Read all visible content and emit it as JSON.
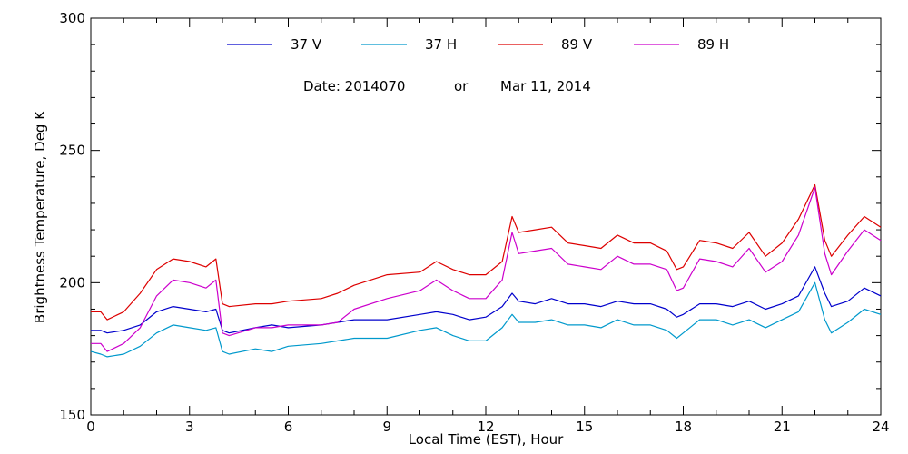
{
  "chart_data": {
    "type": "line",
    "title": "",
    "date_label": "Date: 2014070",
    "date_or": "or",
    "date_text": "Mar 11, 2014",
    "xlabel": "Local Time (EST), Hour",
    "ylabel": "Brightness Temperature, Deg K",
    "xlim": [
      0,
      24
    ],
    "ylim": [
      150,
      300
    ],
    "xticks": [
      0,
      3,
      6,
      9,
      12,
      15,
      18,
      21,
      24
    ],
    "yticks": [
      150,
      200,
      250,
      300
    ],
    "grid": false,
    "legend_position": "top",
    "x": [
      0,
      0.3,
      0.5,
      1,
      1.5,
      2,
      2.5,
      3,
      3.5,
      3.8,
      4,
      4.2,
      5,
      5.5,
      6,
      7,
      7.5,
      8,
      9,
      10,
      10.5,
      11,
      11.5,
      12,
      12.5,
      12.8,
      13,
      13.5,
      14,
      14.5,
      15,
      15.5,
      16,
      16.5,
      17,
      17.5,
      17.8,
      18,
      18.5,
      19,
      19.5,
      20,
      20.5,
      21,
      21.5,
      22,
      22.3,
      22.5,
      23,
      23.5,
      24
    ],
    "series": [
      {
        "name": "37 V",
        "color": "#0000cc",
        "values": [
          182,
          182,
          181,
          182,
          184,
          189,
          191,
          190,
          189,
          190,
          182,
          181,
          183,
          184,
          183,
          184,
          185,
          186,
          186,
          188,
          189,
          188,
          186,
          187,
          191,
          196,
          193,
          192,
          194,
          192,
          192,
          191,
          193,
          192,
          192,
          190,
          187,
          188,
          192,
          192,
          191,
          193,
          190,
          192,
          195,
          206,
          196,
          191,
          193,
          198,
          195
        ]
      },
      {
        "name": "37 H",
        "color": "#0099cc",
        "values": [
          174,
          173,
          172,
          173,
          176,
          181,
          184,
          183,
          182,
          183,
          174,
          173,
          175,
          174,
          176,
          177,
          178,
          179,
          179,
          182,
          183,
          180,
          178,
          178,
          183,
          188,
          185,
          185,
          186,
          184,
          184,
          183,
          186,
          184,
          184,
          182,
          179,
          181,
          186,
          186,
          184,
          186,
          183,
          186,
          189,
          200,
          186,
          181,
          185,
          190,
          188
        ]
      },
      {
        "name": "89 V",
        "color": "#dd0000",
        "values": [
          189,
          189,
          186,
          189,
          196,
          205,
          209,
          208,
          206,
          209,
          192,
          191,
          192,
          192,
          193,
          194,
          196,
          199,
          203,
          204,
          208,
          205,
          203,
          203,
          208,
          225,
          219,
          220,
          221,
          215,
          214,
          213,
          218,
          215,
          215,
          212,
          205,
          206,
          216,
          215,
          213,
          219,
          210,
          215,
          224,
          237,
          216,
          210,
          218,
          225,
          221
        ]
      },
      {
        "name": "89 H",
        "color": "#cc00cc",
        "values": [
          177,
          177,
          174,
          177,
          183,
          195,
          201,
          200,
          198,
          201,
          181,
          180,
          183,
          183,
          184,
          184,
          185,
          190,
          194,
          197,
          201,
          197,
          194,
          194,
          201,
          219,
          211,
          212,
          213,
          207,
          206,
          205,
          210,
          207,
          207,
          205,
          197,
          198,
          209,
          208,
          206,
          213,
          204,
          208,
          218,
          236,
          211,
          203,
          212,
          220,
          216
        ]
      }
    ]
  }
}
